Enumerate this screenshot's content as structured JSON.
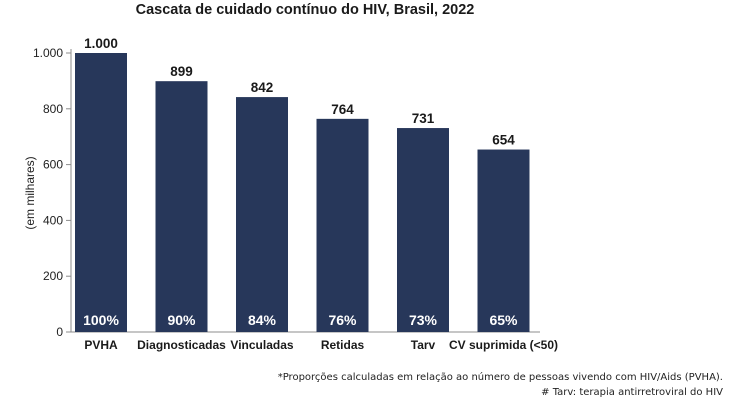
{
  "chart_data": {
    "type": "bar",
    "title": "Cascata de cuidado contínuo do HIV, Brasil, 2022",
    "ylabel": "(em milhares)",
    "xlabel": "",
    "ylim": [
      0,
      1000
    ],
    "yticks": [
      0,
      200,
      400,
      600,
      800,
      1000
    ],
    "ytick_labels": [
      "0",
      "200",
      "400",
      "600",
      "800",
      "1.000"
    ],
    "grid": false,
    "categories": [
      "PVHA",
      "Diagnosticadas",
      "Vinculadas",
      "Retidas",
      "Tarv",
      "CV suprimida (<50)"
    ],
    "values": [
      1000,
      899,
      842,
      764,
      731,
      654
    ],
    "value_labels": [
      "1.000",
      "899",
      "842",
      "764",
      "731",
      "654"
    ],
    "percent_labels": [
      "100%",
      "90%",
      "84%",
      "76%",
      "73%",
      "65%"
    ],
    "bar_color": "#27375a"
  },
  "footnotes": [
    "*Proporções calculadas em relação ao número de pessoas vivendo com HIV/Aids (PVHA).",
    "# Tarv: terapia antirretroviral do HIV"
  ]
}
